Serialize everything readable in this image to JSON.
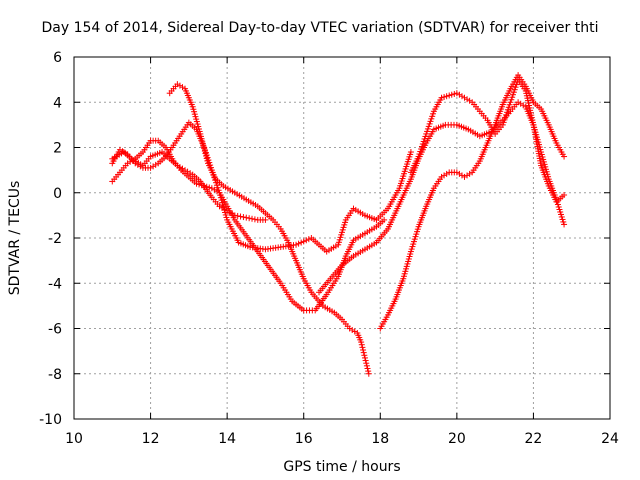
{
  "chart_data": {
    "type": "scatter",
    "title": "Day 154 of 2014, Sidereal Day-to-day VTEC variation (SDTVAR) for receiver thti",
    "xlabel": "GPS time / hours",
    "ylabel": "SDTVAR / TECUs",
    "xlim": [
      10,
      24
    ],
    "ylim": [
      -10,
      6
    ],
    "xticks": [
      "10",
      "12",
      "14",
      "16",
      "18",
      "20",
      "22",
      "24"
    ],
    "yticks": [
      "6",
      "4",
      "2",
      "0",
      "-2",
      "-4",
      "-6",
      "-8",
      "-10"
    ],
    "grid": true,
    "marker": "+",
    "color": "#ff0000",
    "series": [
      {
        "x": [
          11.0,
          11.3,
          11.5,
          11.8,
          12.0,
          12.3,
          12.5,
          12.7,
          12.9,
          13.1,
          13.3,
          13.6,
          13.8,
          14.0,
          14.2,
          14.5,
          14.8,
          15.0
        ],
        "y": [
          1.5,
          1.8,
          1.5,
          1.2,
          1.6,
          1.8,
          1.5,
          1.2,
          1.0,
          0.8,
          0.5,
          -0.2,
          -0.6,
          -0.8,
          -1.0,
          -1.1,
          -1.2,
          -1.2
        ]
      },
      {
        "x": [
          11.0,
          11.2,
          11.4,
          11.6,
          11.8,
          12.0,
          12.2,
          12.4,
          12.6,
          12.8,
          13.0,
          13.2,
          13.4,
          13.6,
          13.8,
          14.0,
          14.3,
          14.6,
          15.0,
          15.4,
          15.8,
          16.2,
          16.6,
          16.9,
          17.1,
          17.3,
          17.6,
          17.9,
          18.2,
          18.5,
          18.8
        ],
        "y": [
          1.3,
          1.9,
          1.7,
          1.3,
          1.1,
          1.1,
          1.3,
          1.6,
          2.1,
          2.6,
          3.1,
          2.8,
          2.0,
          1.0,
          0.0,
          -1.2,
          -2.2,
          -2.4,
          -2.5,
          -2.4,
          -2.3,
          -2.0,
          -2.6,
          -2.3,
          -1.2,
          -0.7,
          -1.0,
          -1.2,
          -0.7,
          0.2,
          1.8
        ]
      },
      {
        "x": [
          12.5,
          12.7,
          12.9,
          13.1,
          13.3,
          13.5,
          13.7,
          13.9,
          14.2,
          14.5,
          14.8,
          15.0,
          15.2,
          15.4,
          15.6,
          15.8,
          16.0,
          16.2,
          16.5,
          16.8,
          17.0,
          17.2,
          17.4,
          17.5,
          17.6,
          17.7
        ],
        "y": [
          4.4,
          4.8,
          4.6,
          3.8,
          2.6,
          1.3,
          0.6,
          0.3,
          0.0,
          -0.3,
          -0.6,
          -0.9,
          -1.2,
          -1.6,
          -2.2,
          -3.0,
          -3.8,
          -4.4,
          -5.0,
          -5.3,
          -5.6,
          -6.0,
          -6.2,
          -6.6,
          -7.3,
          -8.0
        ]
      },
      {
        "x": [
          11.0,
          11.2,
          11.4,
          11.6,
          11.8,
          12.0,
          12.2,
          12.4,
          12.6,
          12.8,
          13.0,
          13.2,
          13.4,
          13.6,
          13.8,
          14.0,
          14.2,
          14.5,
          14.8,
          15.1,
          15.4,
          15.7,
          16.0,
          16.3,
          16.6,
          16.9,
          17.1,
          17.3,
          17.6,
          17.9,
          18.1
        ],
        "y": [
          0.5,
          0.9,
          1.3,
          1.5,
          1.8,
          2.3,
          2.3,
          2.0,
          1.4,
          1.0,
          0.7,
          0.4,
          0.3,
          0.2,
          0.0,
          -0.6,
          -1.2,
          -1.9,
          -2.6,
          -3.3,
          -4.0,
          -4.8,
          -5.2,
          -5.2,
          -4.5,
          -3.7,
          -2.8,
          -2.1,
          -1.8,
          -1.5,
          -1.2
        ]
      },
      {
        "x": [
          16.4,
          16.7,
          17.0,
          17.3,
          17.6,
          17.9,
          18.2,
          18.5,
          18.8,
          19.0,
          19.2,
          19.4,
          19.7,
          20.0,
          20.3,
          20.6,
          20.9,
          21.2,
          21.4,
          21.6,
          21.8,
          22.0,
          22.2,
          22.4,
          22.6,
          22.8
        ],
        "y": [
          -4.4,
          -3.8,
          -3.2,
          -2.8,
          -2.5,
          -2.2,
          -1.6,
          -0.5,
          0.6,
          1.5,
          2.2,
          2.8,
          3.0,
          3.0,
          2.8,
          2.5,
          2.7,
          3.2,
          3.6,
          4.0,
          3.8,
          3.0,
          1.8,
          0.6,
          -0.3,
          -1.4
        ]
      },
      {
        "x": [
          18.0,
          18.2,
          18.4,
          18.6,
          18.8,
          19.0,
          19.2,
          19.4,
          19.6,
          19.8,
          20.0,
          20.2,
          20.4,
          20.6,
          20.8,
          21.0,
          21.2,
          21.4,
          21.6,
          21.8,
          22.0,
          22.2,
          22.4,
          22.6,
          22.8
        ],
        "y": [
          -6.0,
          -5.4,
          -4.7,
          -3.8,
          -2.6,
          -1.5,
          -0.6,
          0.2,
          0.7,
          0.9,
          0.9,
          0.7,
          0.9,
          1.4,
          2.2,
          3.0,
          3.9,
          4.6,
          5.2,
          4.7,
          4.0,
          3.7,
          3.0,
          2.2,
          1.6
        ]
      },
      {
        "x": [
          18.8,
          19.0,
          19.2,
          19.4,
          19.6,
          19.8,
          20.0,
          20.2,
          20.4,
          20.6,
          20.8,
          21.0,
          21.2,
          21.4,
          21.6,
          21.8,
          22.0,
          22.2,
          22.4,
          22.6,
          22.8
        ],
        "y": [
          0.9,
          1.6,
          2.6,
          3.6,
          4.2,
          4.3,
          4.4,
          4.2,
          4.0,
          3.6,
          3.2,
          2.6,
          3.0,
          4.0,
          5.0,
          4.5,
          3.0,
          1.2,
          0.3,
          -0.4,
          -0.1
        ]
      }
    ]
  }
}
